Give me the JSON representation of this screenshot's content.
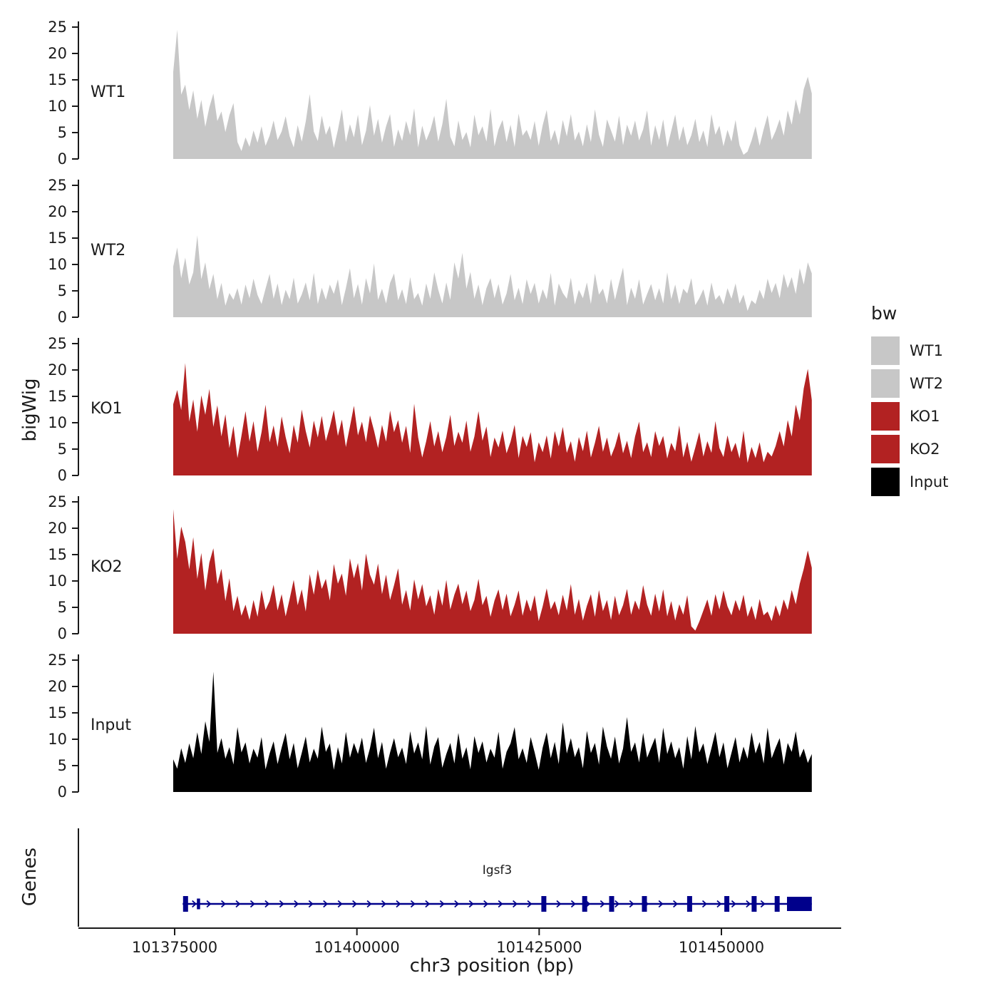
{
  "figure": {
    "y_axis_title": "bigWig",
    "x_axis_title": "chr3 position (bp)",
    "genes_axis_title": "Genes"
  },
  "legend": {
    "title": "bw",
    "position": "right",
    "items": [
      {
        "label": "WT1",
        "color": "#C7C7C7"
      },
      {
        "label": "WT2",
        "color": "#C7C7C7"
      },
      {
        "label": "KO1",
        "color": "#B22222"
      },
      {
        "label": "KO2",
        "color": "#B22222"
      },
      {
        "label": "Input",
        "color": "#000000"
      }
    ]
  },
  "chart_data": {
    "type": "area",
    "title": "",
    "grid": false,
    "legend_position": "right",
    "x_axis": {
      "label": "chr3 position (bp)",
      "domain": [
        101374800,
        101462400
      ],
      "ticks": [
        101375000,
        101400000,
        101425000,
        101450000
      ]
    },
    "y_axis": {
      "label": "bigWig",
      "ticks": [
        0,
        5,
        10,
        15,
        20,
        25
      ],
      "ylim": [
        0,
        25
      ]
    },
    "tracks": [
      {
        "name": "WT1",
        "color": "#C7C7C7",
        "values": [
          16.5,
          24.5,
          12.2,
          14.1,
          9.3,
          13,
          7.6,
          11.2,
          6.1,
          9.8,
          12.4,
          7.2,
          9,
          5.1,
          8.3,
          10.6,
          3.2,
          1.5,
          4.1,
          2.3,
          5.4,
          3.1,
          6.2,
          2.5,
          4.4,
          7.3,
          3.6,
          5.2,
          8.1,
          4.3,
          2.2,
          6.4,
          3.3,
          7.1,
          12.3,
          5.2,
          3.4,
          8.2,
          4.6,
          6.3,
          2.1,
          5.5,
          9.4,
          3.2,
          6.6,
          4.1,
          8.4,
          2.6,
          5.3,
          10.2,
          4.4,
          7.6,
          3.1,
          6.2,
          8.5,
          2.3,
          5.6,
          3.4,
          7.2,
          4.5,
          9.6,
          2.2,
          6.3,
          3.5,
          5.4,
          8.2,
          3.3,
          6.6,
          11.4,
          4.2,
          2.4,
          7.3,
          3.6,
          5.1,
          2.2,
          8.4,
          4.5,
          6.2,
          3.3,
          9.5,
          2.4,
          5.6,
          7.4,
          3.2,
          6.5,
          2.3,
          8.6,
          4.4,
          5.5,
          3.6,
          7.2,
          2.5,
          6.4,
          9.3,
          3.4,
          5.5,
          2.6,
          7.4,
          4.3,
          8.5,
          3.5,
          5.2,
          2.4,
          6.6,
          3.2,
          9.4,
          4.6,
          2.3,
          7.5,
          5.4,
          3.3,
          8.2,
          2.6,
          6.5,
          4.4,
          7.3,
          3.5,
          5.6,
          9.2,
          2.5,
          6.4,
          3.6,
          7.5,
          2.2,
          5.3,
          8.4,
          3.4,
          6.2,
          2.6,
          4.5,
          7.6,
          3.2,
          5.4,
          2.3,
          8.5,
          4.6,
          6.3,
          2.4,
          5.5,
          3.3,
          7.4,
          2.6,
          0.8,
          1.4,
          3.5,
          6.2,
          2.5,
          5.6,
          8.3,
          3.6,
          5.3,
          7.5,
          4.4,
          9.2,
          6.5,
          11.3,
          8.4,
          13.2,
          15.6,
          12.4
        ]
      },
      {
        "name": "WT2",
        "color": "#C7C7C7",
        "values": [
          9.6,
          13.2,
          7.4,
          11.3,
          6.2,
          8.5,
          15.5,
          7.2,
          10.4,
          5.3,
          8.2,
          3.4,
          6.5,
          2.2,
          4.6,
          3.3,
          5.5,
          2.4,
          6.2,
          3.6,
          7.3,
          4.2,
          2.5,
          5.4,
          8.2,
          3.5,
          6.4,
          2.3,
          5.2,
          3.4,
          7.5,
          2.6,
          4.3,
          6.6,
          3.2,
          8.4,
          2.5,
          5.6,
          3.3,
          6.2,
          4.4,
          7.2,
          2.3,
          5.5,
          9.3,
          3.6,
          6.3,
          2.4,
          7.4,
          4.5,
          10.2,
          3.3,
          5.4,
          2.6,
          6.5,
          8.3,
          3.2,
          5.3,
          2.5,
          7.6,
          3.4,
          4.6,
          2.2,
          6.4,
          3.5,
          8.5,
          5.2,
          2.6,
          6.6,
          3.3,
          10.4,
          7.3,
          12.2,
          5.4,
          8.6,
          3.5,
          6.2,
          2.3,
          5.5,
          7.4,
          3.6,
          6.3,
          2.4,
          4.5,
          8.2,
          3.2,
          5.6,
          2.5,
          7.2,
          4.4,
          6.5,
          2.6,
          5.3,
          3.4,
          8.4,
          2.2,
          6.4,
          4.6,
          3.5,
          7.5,
          2.4,
          5.2,
          3.6,
          6.6,
          2.5,
          8.3,
          4.3,
          5.4,
          2.6,
          7.3,
          3.3,
          6.5,
          9.4,
          2.3,
          5.6,
          3.5,
          7.2,
          2.4,
          4.4,
          6.3,
          3.2,
          5.5,
          2.6,
          8.5,
          3.4,
          6.2,
          2.5,
          5.4,
          4.5,
          7.4,
          2.3,
          3.6,
          5.3,
          2.2,
          6.6,
          3.3,
          4.2,
          2.4,
          5.5,
          3.5,
          6.4,
          2.6,
          4.3,
          1.2,
          3.2,
          2.5,
          5.2,
          3.4,
          7.3,
          4.6,
          6.5,
          3.6,
          8.2,
          5.5,
          7.6,
          4.4,
          9.3,
          6.2,
          10.4,
          8.3
        ]
      },
      {
        "name": "KO1",
        "color": "#B22222",
        "values": [
          13.5,
          16.2,
          12.4,
          21.3,
          10.2,
          14.4,
          8.3,
          15.2,
          11.5,
          16.4,
          9.2,
          13.3,
          7.4,
          11.6,
          5.2,
          9.4,
          3.3,
          7.5,
          12.2,
          6.4,
          10.3,
          4.5,
          8.2,
          13.4,
          6.3,
          9.5,
          5.4,
          11.2,
          7.3,
          4.2,
          9.6,
          6.2,
          12.5,
          8.4,
          5.3,
          10.4,
          7.2,
          11.3,
          6.5,
          9.2,
          12.4,
          7.5,
          10.6,
          5.4,
          9.3,
          13.2,
          7.6,
          10.2,
          6.3,
          11.4,
          8.5,
          5.2,
          9.6,
          6.4,
          12.3,
          8.2,
          10.5,
          6.2,
          9.4,
          4.3,
          13.6,
          7.2,
          3.4,
          6.5,
          10.3,
          5.5,
          8.4,
          4.4,
          7.3,
          11.5,
          5.6,
          8.3,
          6.2,
          10.4,
          4.5,
          7.4,
          12.2,
          6.6,
          9.3,
          3.5,
          7.2,
          5.3,
          8.5,
          4.2,
          6.4,
          9.6,
          3.3,
          7.5,
          5.4,
          8.2,
          2.5,
          6.3,
          4.4,
          7.6,
          3.2,
          8.4,
          5.5,
          9.2,
          4.3,
          6.5,
          2.6,
          7.3,
          4.6,
          8.5,
          3.4,
          6.2,
          9.4,
          4.5,
          7.2,
          3.6,
          5.5,
          8.3,
          4.2,
          6.6,
          3.3,
          7.4,
          10.2,
          4.4,
          6.3,
          3.5,
          8.4,
          5.6,
          7.5,
          3.2,
          6.2,
          4.6,
          9.5,
          3.4,
          6.4,
          2.6,
          5.3,
          8.2,
          3.6,
          6.5,
          4.3,
          10.3,
          5.2,
          3.5,
          7.6,
          4.4,
          6.2,
          3.2,
          8.5,
          2.4,
          5.4,
          3.3,
          6.3,
          2.5,
          4.5,
          3.6,
          5.6,
          8.4,
          5.5,
          10.5,
          7.4,
          13.4,
          10.4,
          16.5,
          20.2,
          14.3
        ]
      },
      {
        "name": "KO2",
        "color": "#B22222",
        "values": [
          23.6,
          14.2,
          20.3,
          17.4,
          12.2,
          18.3,
          10.4,
          15.3,
          8.2,
          13.5,
          16.2,
          9.4,
          12.3,
          6.2,
          10.5,
          4.3,
          7.2,
          3.4,
          5.5,
          2.6,
          6.4,
          3.2,
          8.3,
          4.5,
          6.2,
          9.3,
          4.4,
          7.5,
          3.3,
          6.6,
          10.2,
          5.4,
          8.4,
          4.2,
          11.3,
          7.4,
          12.2,
          8.5,
          10.4,
          6.3,
          13.2,
          9.5,
          11.4,
          7.2,
          14.3,
          10.5,
          13.4,
          8.2,
          15.2,
          11.2,
          9.3,
          13.3,
          7.5,
          11.2,
          6.4,
          9.2,
          12.4,
          5.5,
          8.3,
          4.4,
          10.3,
          6.5,
          9.4,
          5.2,
          7.3,
          3.6,
          8.5,
          5.3,
          10.2,
          4.6,
          7.4,
          9.5,
          5.6,
          8.2,
          4.3,
          6.4,
          10.4,
          5.4,
          7.2,
          3.2,
          6.3,
          8.4,
          4.5,
          7.6,
          3.3,
          5.5,
          8.2,
          3.4,
          6.5,
          4.2,
          7.3,
          2.4,
          5.2,
          8.6,
          4.6,
          6.2,
          3.5,
          7.4,
          4.4,
          9.4,
          3.6,
          6.6,
          2.5,
          5.3,
          7.5,
          3.2,
          8.3,
          4.3,
          6.4,
          2.6,
          7.2,
          3.5,
          5.4,
          8.5,
          3.6,
          6.3,
          4.5,
          9.2,
          5.5,
          3.4,
          7.6,
          4.2,
          8.4,
          3.3,
          6.2,
          2.5,
          5.6,
          3.6,
          7.3,
          1.4,
          0.6,
          2.3,
          4.4,
          6.5,
          3.4,
          7.5,
          4.6,
          8.2,
          5.2,
          3.5,
          6.4,
          4.3,
          7.4,
          3.2,
          5.3,
          2.6,
          6.6,
          3.5,
          4.2,
          2.4,
          5.4,
          3.3,
          6.5,
          4.5,
          8.3,
          5.6,
          9.5,
          12.3,
          15.8,
          12.5
        ]
      },
      {
        "name": "Input",
        "color": "#000000",
        "values": [
          6.2,
          4.4,
          8.3,
          5.5,
          9.2,
          6.4,
          11.3,
          7.2,
          13.4,
          9.5,
          22.8,
          7.4,
          10.2,
          6.3,
          8.5,
          5.2,
          12.3,
          7.5,
          9.4,
          5.4,
          8.2,
          6.5,
          10.4,
          4.3,
          7.3,
          9.6,
          5.3,
          8.4,
          11.2,
          6.2,
          9.3,
          4.5,
          7.4,
          10.5,
          5.6,
          8.2,
          6.3,
          12.4,
          7.6,
          9.2,
          4.2,
          8.5,
          5.4,
          11.4,
          6.5,
          9.3,
          7.2,
          10.3,
          5.5,
          8.3,
          12.2,
          6.4,
          9.5,
          4.4,
          7.5,
          10.2,
          6.6,
          8.4,
          5.3,
          11.5,
          7.3,
          9.4,
          6.2,
          12.5,
          5.2,
          8.6,
          10.4,
          4.6,
          7.2,
          9.3,
          5.4,
          11.2,
          6.3,
          8.5,
          4.3,
          10.6,
          7.4,
          9.6,
          5.6,
          8.2,
          6.5,
          11.4,
          4.4,
          7.6,
          9.2,
          12.3,
          6.2,
          8.3,
          5.5,
          10.4,
          7.5,
          4.2,
          8.4,
          11.3,
          6.4,
          9.5,
          5.3,
          13.2,
          7.3,
          10.2,
          6.6,
          8.5,
          4.5,
          11.6,
          7.4,
          9.3,
          5.2,
          12.4,
          8.6,
          6.3,
          10.5,
          5.4,
          8.2,
          14.2,
          7.6,
          9.4,
          5.6,
          11.2,
          6.5,
          8.4,
          10.3,
          5.5,
          12.2,
          7.2,
          9.6,
          6.4,
          8.5,
          4.4,
          10.6,
          6.2,
          12.5,
          7.5,
          9.2,
          5.3,
          8.3,
          11.4,
          6.6,
          9.4,
          4.5,
          7.4,
          10.4,
          5.6,
          8.6,
          6.3,
          11.3,
          7.3,
          9.5,
          5.4,
          12.2,
          6.4,
          8.4,
          10.2,
          5.2,
          9.3,
          7.6,
          11.5,
          6.5,
          8.2,
          5.5,
          7.2
        ]
      }
    ],
    "genes": {
      "label": "Genes",
      "gene": {
        "name": "Igsf3",
        "chrom": "chr3",
        "start": 101376100,
        "end": 101462400,
        "strand": "+",
        "color": "#00008B",
        "exons": [
          {
            "start": 101376150,
            "end": 101376550,
            "size": "tall"
          },
          {
            "start": 101378050,
            "end": 101378350,
            "size": "small"
          },
          {
            "start": 101425300,
            "end": 101425800,
            "size": "tall"
          },
          {
            "start": 101430900,
            "end": 101431300,
            "size": "tall"
          },
          {
            "start": 101434600,
            "end": 101434950,
            "size": "tall"
          },
          {
            "start": 101439100,
            "end": 101439450,
            "size": "tall"
          },
          {
            "start": 101445300,
            "end": 101445650,
            "size": "tall"
          },
          {
            "start": 101450400,
            "end": 101450750,
            "size": "tall"
          },
          {
            "start": 101454150,
            "end": 101454500,
            "size": "tall"
          },
          {
            "start": 101457300,
            "end": 101457650,
            "size": "tall"
          },
          {
            "start": 101459000,
            "end": 101462400,
            "size": "box"
          }
        ]
      }
    }
  }
}
